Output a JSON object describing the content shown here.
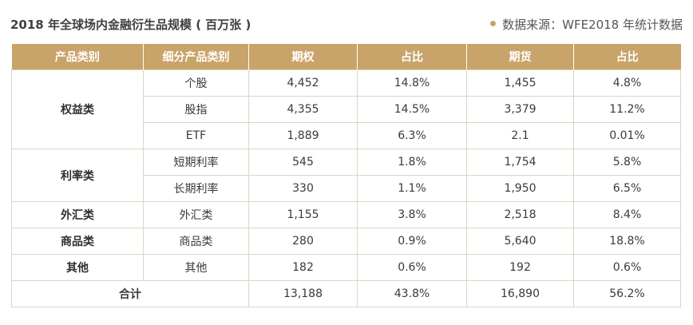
{
  "title": "2018 年全球场内金融衍生品规模 ( 百万张 )",
  "source": "数据来源：WFE2018 年统计数据",
  "accent_color": "#c9a46a",
  "columns": [
    "产品类别",
    "细分产品类别",
    "期权",
    "占比",
    "期货",
    "占比"
  ],
  "groups": [
    {
      "name": "权益类",
      "rows": [
        {
          "sub": "个股",
          "options": "4,452",
          "options_pct": "14.8%",
          "futures": "1,455",
          "futures_pct": "4.8%"
        },
        {
          "sub": "股指",
          "options": "4,355",
          "options_pct": "14.5%",
          "futures": "3,379",
          "futures_pct": "11.2%"
        },
        {
          "sub": "ETF",
          "options": "1,889",
          "options_pct": "6.3%",
          "futures": "2.1",
          "futures_pct": "0.01%"
        }
      ]
    },
    {
      "name": "利率类",
      "rows": [
        {
          "sub": "短期利率",
          "options": "545",
          "options_pct": "1.8%",
          "futures": "1,754",
          "futures_pct": "5.8%"
        },
        {
          "sub": "长期利率",
          "options": "330",
          "options_pct": "1.1%",
          "futures": "1,950",
          "futures_pct": "6.5%"
        }
      ]
    },
    {
      "name": "外汇类",
      "rows": [
        {
          "sub": "外汇类",
          "options": "1,155",
          "options_pct": "3.8%",
          "futures": "2,518",
          "futures_pct": "8.4%"
        }
      ]
    },
    {
      "name": "商品类",
      "rows": [
        {
          "sub": "商品类",
          "options": "280",
          "options_pct": "0.9%",
          "futures": "5,640",
          "futures_pct": "18.8%"
        }
      ]
    },
    {
      "name": "其他",
      "rows": [
        {
          "sub": "其他",
          "options": "182",
          "options_pct": "0.6%",
          "futures": "192",
          "futures_pct": "0.6%"
        }
      ]
    }
  ],
  "total": {
    "label": "合计",
    "options": "13,188",
    "options_pct": "43.8%",
    "futures": "16,890",
    "futures_pct": "56.2%"
  }
}
